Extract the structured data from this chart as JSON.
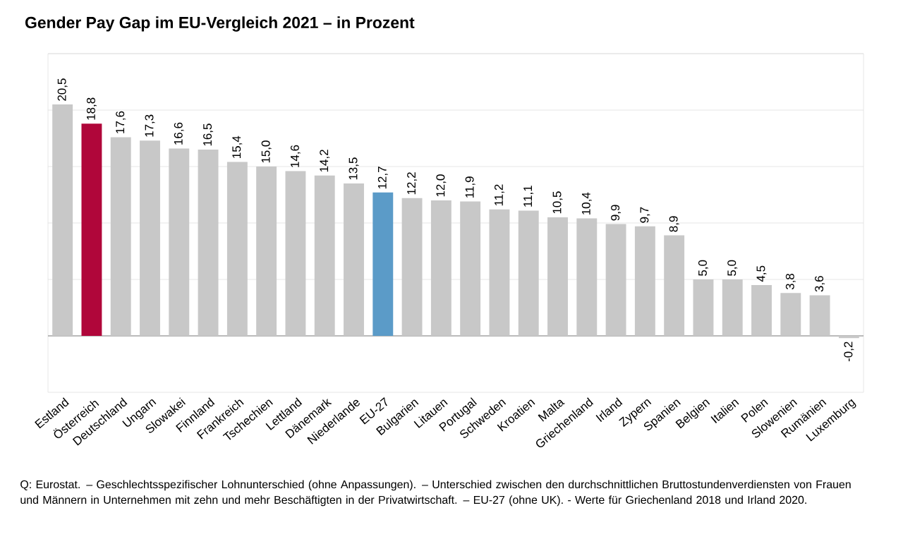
{
  "chart_data": {
    "type": "bar",
    "title": "Gender Pay Gap im EU-Vergleich 2021 – in Prozent",
    "categories": [
      "Estland",
      "Österreich",
      "Deutschland",
      "Ungarn",
      "Slowakei",
      "Finnland",
      "Frankreich",
      "Tschechien",
      "Lettland",
      "Dänemark",
      "Niederlande",
      "EU-27",
      "Bulgarien",
      "Litauen",
      "Portugal",
      "Schweden",
      "Kroatien",
      "Malta",
      "Griechenland",
      "Irland",
      "Zypern",
      "Spanien",
      "Belgien",
      "Italien",
      "Polen",
      "Slowenien",
      "Rumänien",
      "Luxemburg"
    ],
    "values": [
      20.5,
      18.8,
      17.6,
      17.3,
      16.6,
      16.5,
      15.4,
      15.0,
      14.6,
      14.2,
      13.5,
      12.7,
      12.2,
      12.0,
      11.9,
      11.2,
      11.1,
      10.5,
      10.4,
      9.9,
      9.7,
      8.9,
      5.0,
      5.0,
      4.5,
      3.8,
      3.6,
      -0.2
    ],
    "value_labels": [
      "20,5",
      "18,8",
      "17,6",
      "17,3",
      "16,6",
      "16,5",
      "15,4",
      "15,0",
      "14,6",
      "14,2",
      "13,5",
      "12,7",
      "12,2",
      "12,0",
      "11,9",
      "11,2",
      "11,1",
      "10,5",
      "10,4",
      "9,9",
      "9,7",
      "8,9",
      "5,0",
      "5,0",
      "4,5",
      "3,8",
      "3,6",
      "-0,2"
    ],
    "colors": [
      "#c8c8c8",
      "#b0063a",
      "#c8c8c8",
      "#c8c8c8",
      "#c8c8c8",
      "#c8c8c8",
      "#c8c8c8",
      "#c8c8c8",
      "#c8c8c8",
      "#c8c8c8",
      "#c8c8c8",
      "#5b9bc8",
      "#c8c8c8",
      "#c8c8c8",
      "#c8c8c8",
      "#c8c8c8",
      "#c8c8c8",
      "#c8c8c8",
      "#c8c8c8",
      "#c8c8c8",
      "#c8c8c8",
      "#c8c8c8",
      "#c8c8c8",
      "#c8c8c8",
      "#c8c8c8",
      "#c8c8c8",
      "#c8c8c8",
      "#c8c8c8"
    ],
    "ylim": [
      -5,
      25
    ],
    "yticks": [
      {
        "value": 0,
        "label": null
      },
      {
        "value": 5,
        "label": null
      },
      {
        "value": 10,
        "label": null
      },
      {
        "value": 15,
        "label": null
      },
      {
        "value": 20,
        "label": null
      },
      {
        "value": 25,
        "label": null
      }
    ],
    "grid": "y",
    "tick_labels": "x",
    "annotations": [
      "Q: Eurostat. – Geschlechtsspezifischer Lohnunterschied (ohne Anpassungen). – Unterschied zwischen den durchschnittlichen Bruttostundenverdiensten von Frauen und Männern in Unternehmen mit zehn und mehr Beschäftigten in der Privatwirtschaft. – EU-27 (ohne UK). - Werte für Griechenland 2018 und Irland 2020."
    ]
  }
}
